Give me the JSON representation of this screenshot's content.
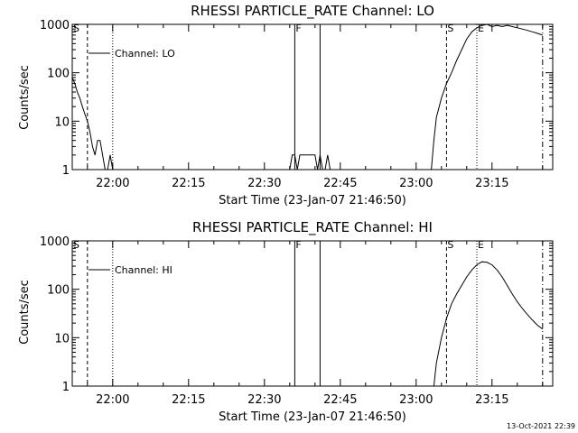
{
  "footer_timestamp": "13-Oct-2021 22:39",
  "chart_data": [
    {
      "type": "line",
      "title": "RHESSI PARTICLE_RATE Channel: LO",
      "xlabel": "Start Time (23-Jan-07 21:46:50)",
      "ylabel": "Counts/sec",
      "yscale": "log",
      "xlim": [
        "21:52",
        "23:27"
      ],
      "ylim": [
        1,
        1000
      ],
      "x_ticks": [
        "22:00",
        "22:15",
        "22:30",
        "22:45",
        "23:00",
        "23:15"
      ],
      "y_ticks": [
        "1",
        "10",
        "100",
        "1000"
      ],
      "legend": "Channel: LO",
      "legend_position": "top-left",
      "grid": false,
      "markers": [
        {
          "label": "S",
          "time": "21:52",
          "style": "solid"
        },
        {
          "label": "",
          "time": "21:55",
          "style": "dashed"
        },
        {
          "label": "",
          "time": "22:00",
          "style": "dotted"
        },
        {
          "label": "F",
          "time": "22:36",
          "style": "solid"
        },
        {
          "label": "",
          "time": "22:41",
          "style": "solid"
        },
        {
          "label": "S",
          "time": "23:06",
          "style": "dashed"
        },
        {
          "label": "E",
          "time": "23:12",
          "style": "dotted"
        },
        {
          "label": "",
          "time": "23:25",
          "style": "dashdot"
        }
      ],
      "series": [
        {
          "points": [
            [
              "21:52",
              80
            ],
            [
              "21:52:30",
              60
            ],
            [
              "21:53",
              40
            ],
            [
              "21:53:30",
              30
            ],
            [
              "21:54",
              20
            ],
            [
              "21:54:30",
              14
            ],
            [
              "21:55",
              10
            ],
            [
              "21:55:30",
              6
            ],
            [
              "21:56",
              3
            ],
            [
              "21:56:30",
              2
            ],
            [
              "21:57",
              4
            ],
            [
              "21:57:30",
              4
            ],
            [
              "21:58",
              2
            ],
            [
              "21:58:30",
              1
            ],
            [
              "21:59",
              1
            ],
            [
              "21:59:30",
              2
            ],
            [
              "22:00",
              1
            ],
            [
              "22:35",
              1
            ],
            [
              "22:35:30",
              2
            ],
            [
              "22:36",
              2
            ],
            [
              "22:36:30",
              1
            ],
            [
              "22:37",
              2
            ],
            [
              "22:39",
              2
            ],
            [
              "22:40",
              2
            ],
            [
              "22:40:30",
              1
            ],
            [
              "22:41",
              2
            ],
            [
              "22:41:30",
              1
            ],
            [
              "22:42",
              1
            ],
            [
              "22:42:30",
              2
            ],
            [
              "22:43",
              1
            ],
            [
              "23:03",
              1
            ],
            [
              "23:03:30",
              4
            ],
            [
              "23:04",
              12
            ],
            [
              "23:05",
              30
            ],
            [
              "23:06",
              60
            ],
            [
              "23:07",
              100
            ],
            [
              "23:08",
              180
            ],
            [
              "23:09",
              300
            ],
            [
              "23:10",
              500
            ],
            [
              "23:11",
              700
            ],
            [
              "23:12",
              850
            ],
            [
              "23:13",
              950
            ],
            [
              "23:14",
              1000
            ],
            [
              "23:15",
              900
            ],
            [
              "23:16",
              950
            ],
            [
              "23:17",
              900
            ],
            [
              "23:18",
              950
            ],
            [
              "23:19",
              900
            ],
            [
              "23:20",
              850
            ],
            [
              "23:21",
              800
            ],
            [
              "23:22",
              750
            ],
            [
              "23:23",
              700
            ],
            [
              "23:24",
              650
            ],
            [
              "23:25",
              600
            ]
          ]
        }
      ]
    },
    {
      "type": "line",
      "title": "RHESSI PARTICLE_RATE Channel: HI",
      "xlabel": "Start Time (23-Jan-07 21:46:50)",
      "ylabel": "Counts/sec",
      "yscale": "log",
      "xlim": [
        "21:52",
        "23:27"
      ],
      "ylim": [
        1,
        1000
      ],
      "x_ticks": [
        "22:00",
        "22:15",
        "22:30",
        "22:45",
        "23:00",
        "23:15"
      ],
      "y_ticks": [
        "1",
        "10",
        "100",
        "1000"
      ],
      "legend": "Channel: HI",
      "legend_position": "top-left",
      "grid": false,
      "markers": [
        {
          "label": "S",
          "time": "21:52",
          "style": "solid"
        },
        {
          "label": "",
          "time": "21:55",
          "style": "dashed"
        },
        {
          "label": "",
          "time": "22:00",
          "style": "dotted"
        },
        {
          "label": "F",
          "time": "22:36",
          "style": "solid"
        },
        {
          "label": "",
          "time": "22:41",
          "style": "solid"
        },
        {
          "label": "S",
          "time": "23:06",
          "style": "dashed"
        },
        {
          "label": "E",
          "time": "23:12",
          "style": "dotted"
        },
        {
          "label": "",
          "time": "23:25",
          "style": "dashdot"
        }
      ],
      "series": [
        {
          "points": [
            [
              "23:03:30",
              1
            ],
            [
              "23:04",
              3
            ],
            [
              "23:05",
              10
            ],
            [
              "23:06",
              25
            ],
            [
              "23:07",
              50
            ],
            [
              "23:08",
              80
            ],
            [
              "23:09",
              120
            ],
            [
              "23:10",
              180
            ],
            [
              "23:11",
              250
            ],
            [
              "23:12",
              320
            ],
            [
              "23:13",
              370
            ],
            [
              "23:14",
              360
            ],
            [
              "23:15",
              320
            ],
            [
              "23:16",
              250
            ],
            [
              "23:17",
              180
            ],
            [
              "23:18",
              120
            ],
            [
              "23:19",
              80
            ],
            [
              "23:20",
              55
            ],
            [
              "23:21",
              40
            ],
            [
              "23:22",
              30
            ],
            [
              "23:23",
              23
            ],
            [
              "23:24",
              18
            ],
            [
              "23:25",
              15
            ]
          ]
        }
      ]
    }
  ]
}
